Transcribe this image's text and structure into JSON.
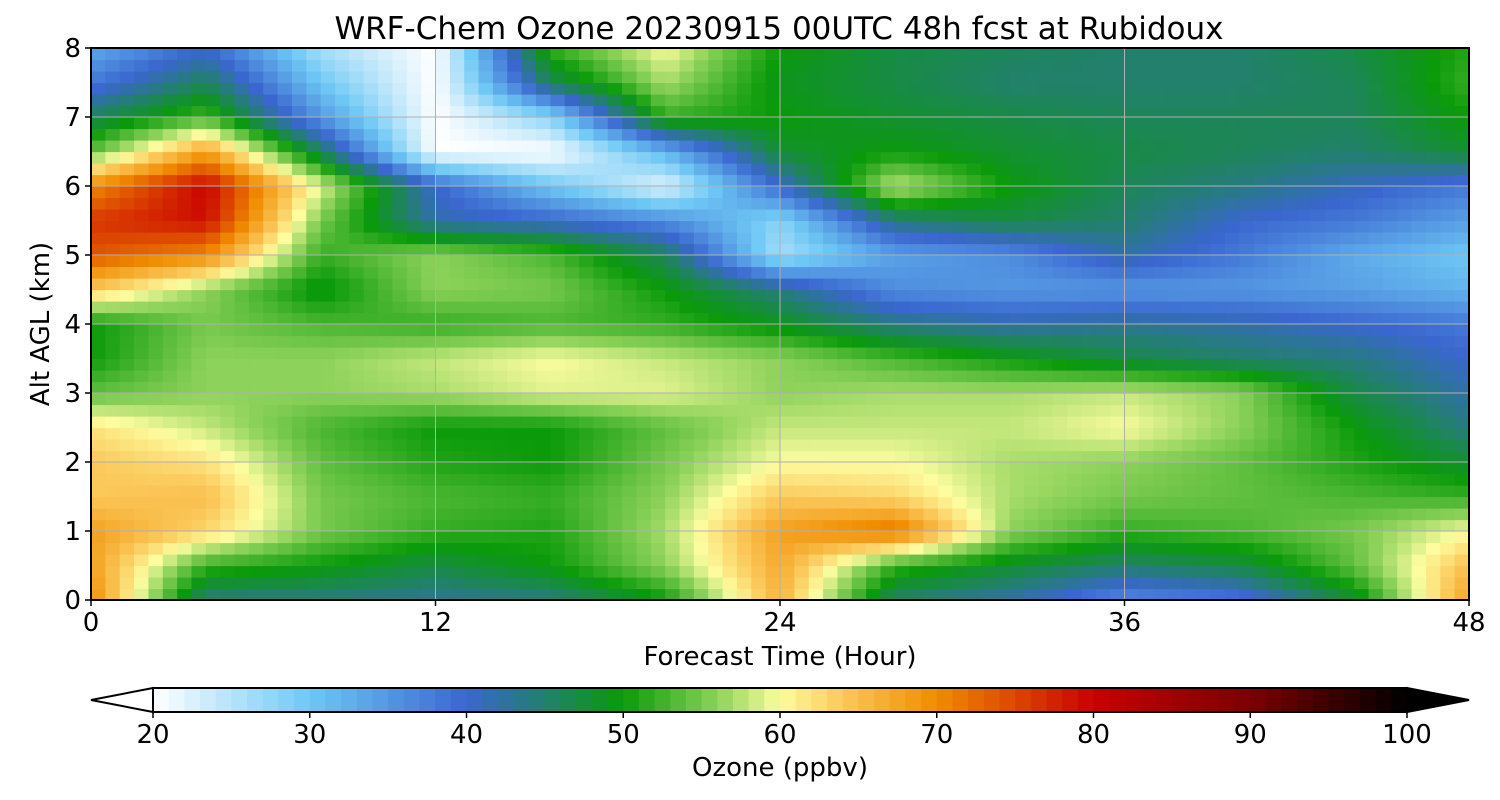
{
  "chart_data": {
    "type": "heatmap",
    "title": "WRF-Chem Ozone  20230915 00UTC 48h fcst at Rubidoux",
    "xlabel": "Forecast Time (Hour)",
    "ylabel": "Alt AGL (km)",
    "xlim": [
      0,
      48
    ],
    "ylim": [
      0,
      8
    ],
    "xticks": [
      "0",
      "12",
      "24",
      "36",
      "48"
    ],
    "yticks": [
      "0",
      "1",
      "2",
      "3",
      "4",
      "5",
      "6",
      "7",
      "8"
    ],
    "grid": true,
    "x_hours": [
      0,
      4,
      8,
      12,
      16,
      20,
      24,
      28,
      32,
      36,
      40,
      44,
      48
    ],
    "y_km": [
      0,
      0.5,
      1,
      1.5,
      2,
      2.5,
      3,
      3.5,
      4,
      4.5,
      5,
      5.5,
      6,
      6.5,
      7,
      7.5,
      8
    ],
    "z_ppbv": [
      [
        70,
        44,
        44,
        43,
        44,
        50,
        66,
        45,
        42,
        36,
        38,
        48,
        68
      ],
      [
        68,
        52,
        50,
        47,
        50,
        56,
        67,
        52,
        48,
        45,
        47,
        54,
        65
      ],
      [
        68,
        63,
        55,
        52,
        51,
        57,
        68,
        72,
        56,
        52,
        53,
        55,
        60
      ],
      [
        64,
        65,
        55,
        53,
        52,
        56,
        64,
        63,
        57,
        55,
        54,
        53,
        52
      ],
      [
        64,
        62,
        54,
        51,
        50,
        55,
        60,
        60,
        57,
        56,
        54,
        51,
        48
      ],
      [
        62,
        58,
        53,
        50,
        50,
        54,
        58,
        58,
        58,
        60,
        56,
        50,
        44
      ],
      [
        54,
        56,
        56,
        57,
        59,
        59,
        56,
        57,
        57,
        58,
        56,
        47,
        42
      ],
      [
        50,
        56,
        56,
        58,
        60,
        58,
        56,
        53,
        50,
        47,
        45,
        44,
        40
      ],
      [
        50,
        55,
        53,
        52,
        53,
        52,
        49,
        44,
        42,
        43,
        42,
        40,
        38
      ],
      [
        64,
        56,
        49,
        56,
        55,
        50,
        44,
        36,
        35,
        35,
        35,
        34,
        32
      ],
      [
        74,
        70,
        52,
        56,
        53,
        46,
        26,
        34,
        36,
        42,
        38,
        33,
        30
      ],
      [
        76,
        79,
        55,
        42,
        40,
        36,
        28,
        44,
        47,
        45,
        40,
        38,
        34
      ],
      [
        70,
        80,
        59,
        40,
        30,
        22,
        40,
        58,
        50,
        46,
        44,
        41,
        38
      ],
      [
        54,
        68,
        46,
        20,
        20,
        32,
        48,
        50,
        48,
        47,
        46,
        45,
        48
      ],
      [
        46,
        53,
        35,
        20,
        28,
        52,
        50,
        48,
        47,
        46,
        46,
        46,
        50
      ],
      [
        38,
        46,
        30,
        20,
        46,
        57,
        49,
        47,
        45,
        45,
        45,
        46,
        52
      ],
      [
        33,
        40,
        26,
        20,
        52,
        60,
        50,
        47,
        46,
        45,
        45,
        47,
        51
      ]
    ],
    "colorbar": {
      "label": "Ozone  (ppbv)",
      "ticks": [
        "20",
        "30",
        "40",
        "50",
        "60",
        "70",
        "80",
        "90",
        "100"
      ],
      "min": 20,
      "max": 100,
      "extend": "both",
      "stops": [
        [
          20,
          "#ffffff"
        ],
        [
          30,
          "#6ec8f5"
        ],
        [
          40,
          "#3a66cf"
        ],
        [
          50,
          "#0a9a0a"
        ],
        [
          56,
          "#8dd25a"
        ],
        [
          60,
          "#fdfda0"
        ],
        [
          64,
          "#fbc85a"
        ],
        [
          70,
          "#f08c00"
        ],
        [
          80,
          "#c80000"
        ],
        [
          90,
          "#7a0000"
        ],
        [
          100,
          "#000000"
        ]
      ]
    }
  }
}
